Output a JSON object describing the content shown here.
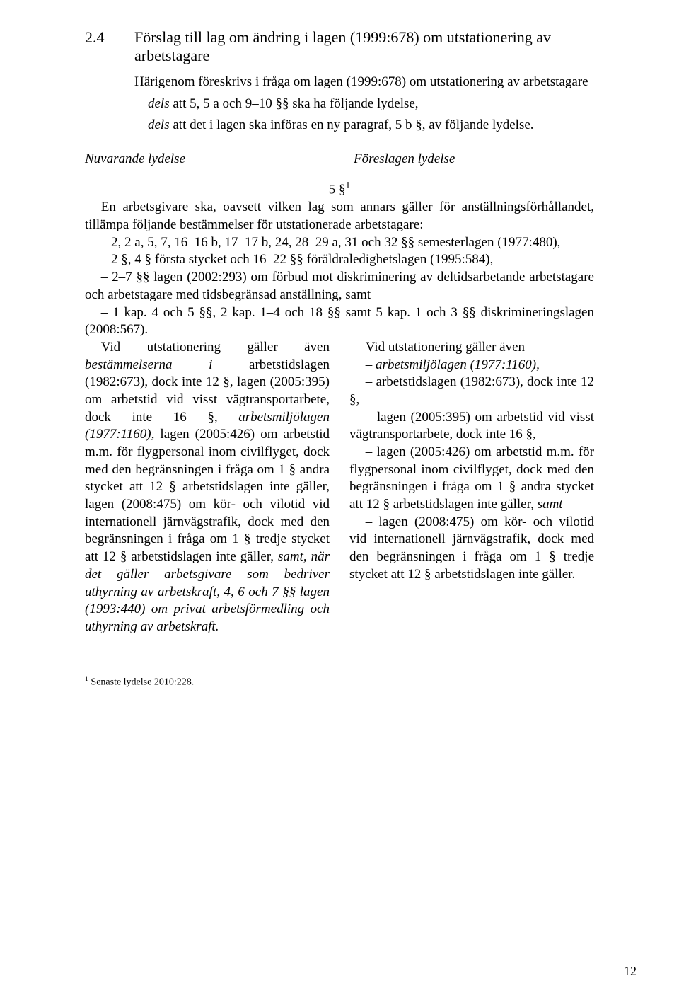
{
  "heading": {
    "number": "2.4",
    "title": "Förslag till lag om ändring i lagen (1999:678) om utstationering av arbetstagare"
  },
  "intro": {
    "p1_prefix": "Härigenom föreskrivs i fråga om lagen (1999:678) om utstationering av arbetstagare",
    "p2_dels1_italic": "dels",
    "p2_dels1_rest": " att 5, 5 a och 9–10 §§ ska ha följande lydelse,",
    "p3_dels2_italic": "dels",
    "p3_dels2_rest": " att det i lagen ska införas en ny paragraf, 5 b §, av följande lydelse."
  },
  "col_headings": {
    "left": "Nuvarande lydelse",
    "right": "Föreslagen lydelse"
  },
  "section_label": "5 §",
  "section_label_sup": "1",
  "body": {
    "p1": "En arbetsgivare ska, oavsett vilken lag som annars gäller för anställningsförhållandet, tillämpa följande bestämmelser för utstationerade arbetstagare:",
    "i1": "– 2, 2 a, 5, 7, 16–16 b, 17–17 b, 24, 28–29 a, 31 och 32 §§ semesterlagen (1977:480),",
    "i2": "– 2 §, 4 § första stycket och 16–22 §§ föräldraledighetslagen (1995:584),",
    "i3": "– 2–7 §§ lagen (2002:293) om förbud mot diskriminering av deltidsarbetande arbetstagare och arbetstagare med tidsbegränsad anställning, samt",
    "i4": "– 1 kap. 4 och 5 §§, 2 kap. 1–4 och 18 §§ samt 5 kap. 1 och 3 §§ diskrimineringslagen (2008:567)."
  },
  "left_col": {
    "l1a": "Vid utstationering gäller även ",
    "l1b_italic": "bestämmelserna i",
    "l1c": " arbetstidslagen (1982:673), dock inte 12 §, lagen (2005:395) om arbetstid vid visst vägtransportarbete, dock inte 16 §, ",
    "l1d_italic": "arbetsmiljölagen (1977:1160),",
    "l1e": " lagen (2005:426) om arbetstid m.m. för flygpersonal inom civilflyget, dock med den begränsningen i fråga om 1 § andra stycket att 12 § arbetstidslagen inte gäller, lagen (2008:475) om kör- och vilotid vid internationell järnvägstrafik, dock med den begränsningen i fråga om 1 § tredje stycket att 12 § arbetstidslagen inte gäller, ",
    "l1f_italic": "samt, när det gäller arbetsgivare som bedriver uthyrning av arbetskraft, 4, 6 och 7 §§ lagen (1993:440) om privat arbetsförmedling och uthyrning av arbetskraft."
  },
  "right_col": {
    "r1": "Vid utstationering gäller även",
    "r2_italic": "– arbetsmiljölagen (1977:1160),",
    "r3": "– arbetstidslagen (1982:673), dock inte 12 §,",
    "r4": "– lagen (2005:395) om arbetstid vid visst vägtransportarbete, dock inte 16 §,",
    "r5": "– lagen (2005:426) om arbetstid m.m. för flygpersonal inom civilflyget, dock med den begränsningen i fråga om 1 § andra stycket att 12 § arbetstidslagen inte gäller, ",
    "r5_italic": "samt",
    "r6": "– lagen (2008:475) om kör- och vilotid vid internationell järnvägstrafik, dock med den begränsningen i fråga om 1 § tredje stycket att 12 § arbetstidslagen inte gäller."
  },
  "footnote": {
    "marker": "1",
    "text": " Senaste lydelse 2010:228."
  },
  "page_number": "12"
}
